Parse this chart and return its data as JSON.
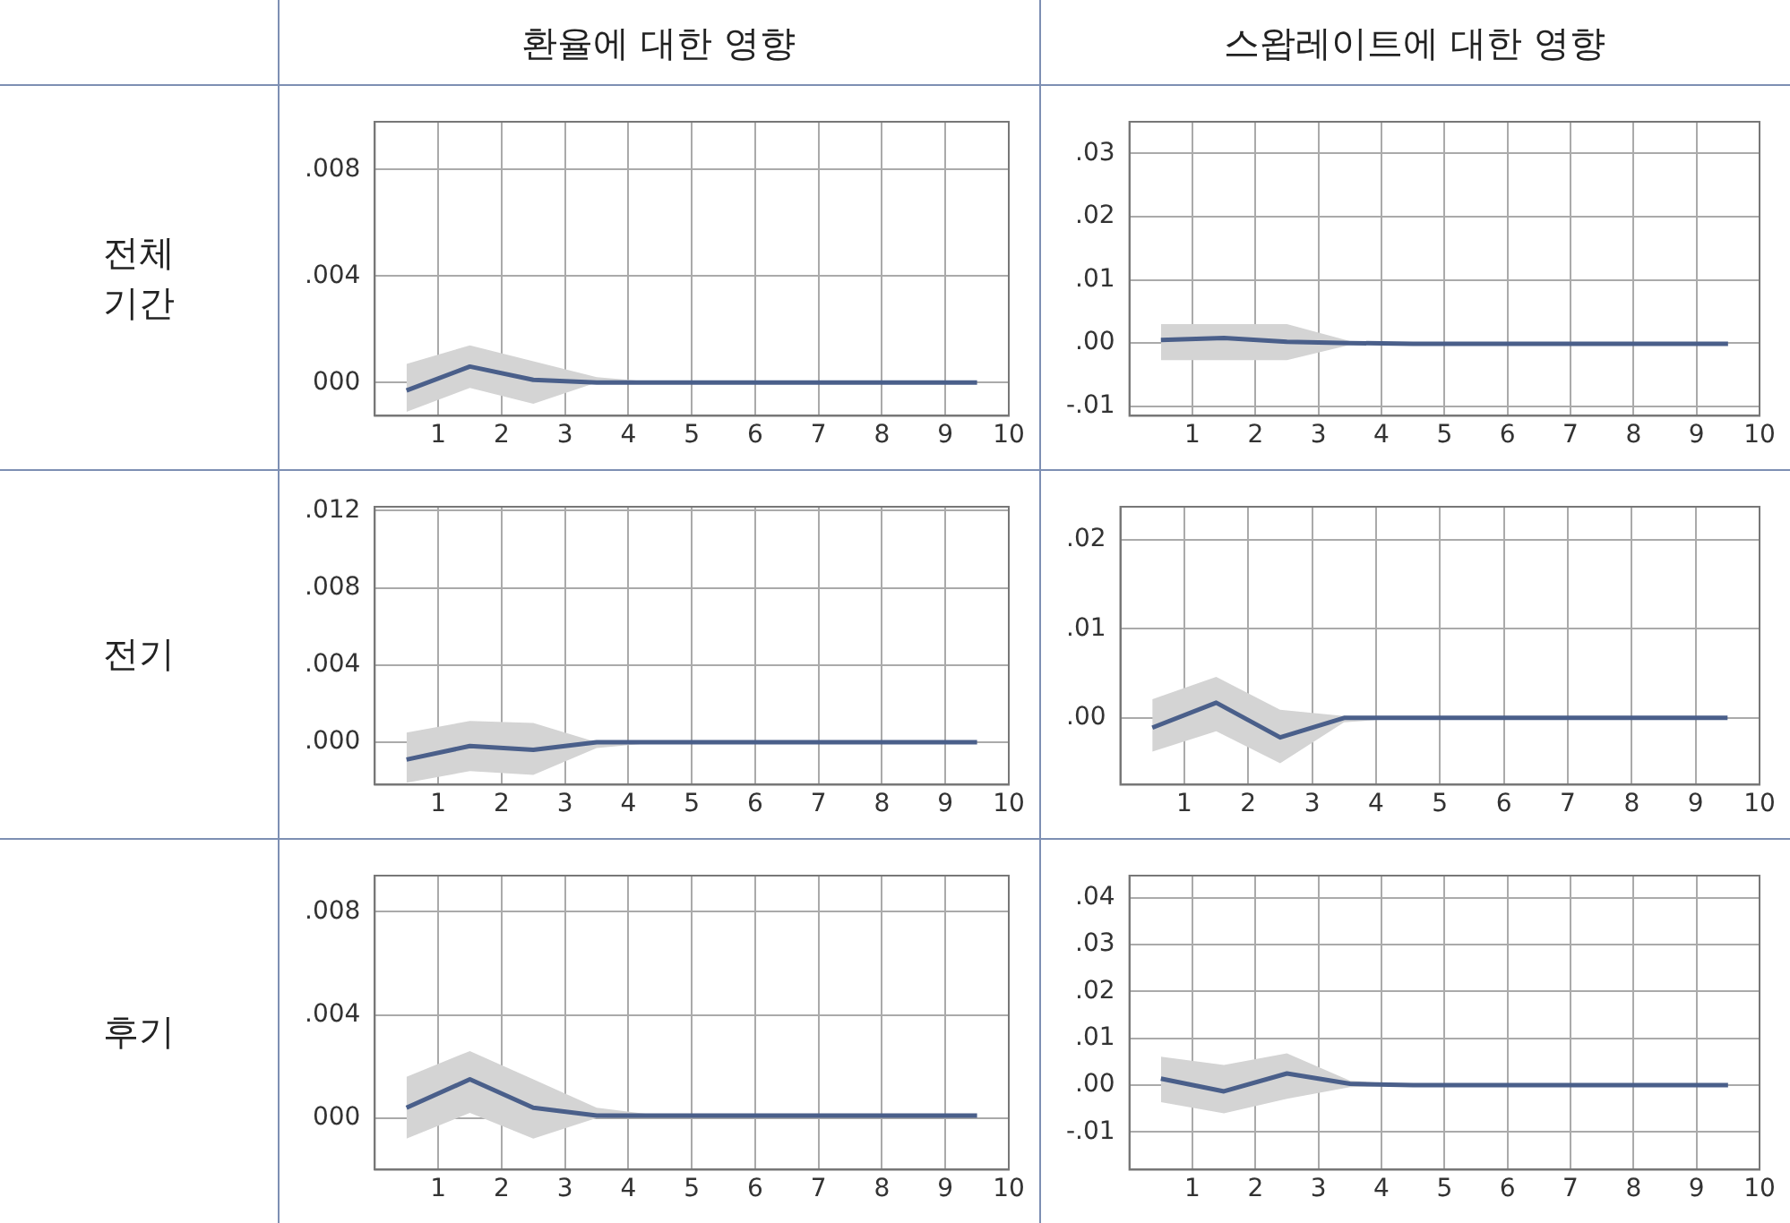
{
  "chart_data": [
    {
      "type": "other",
      "annotations": [
        "환율에 대한 영향",
        "스왑레이트에 대한 영향",
        "전체\n기간",
        "전기",
        "후기"
      ]
    },
    {
      "type": "line",
      "x": [
        0.5,
        1.5,
        2.5,
        3.5,
        4.5,
        5.5,
        6.5,
        7.5,
        8.5,
        9.5
      ],
      "xlim": [
        0,
        10
      ],
      "xticks": [
        1,
        2,
        3,
        4,
        5,
        6,
        7,
        8,
        9,
        10
      ],
      "ylim": [
        -0.00125,
        0.0098
      ],
      "yticks": [
        {
          "value": 0,
          "label": "000"
        },
        {
          "value": 0.004,
          "label": ".004"
        },
        {
          "value": 0.008,
          "label": ".008"
        }
      ],
      "grid": true,
      "series": [
        {
          "color": "#4a5f8a",
          "values": [
            -0.0003,
            0.0006,
            0.0001,
            0,
            0,
            0,
            0,
            0,
            0,
            0
          ],
          "lower": [
            -0.0011,
            -0.0002,
            -0.0008,
            0,
            0,
            0,
            0,
            0,
            0,
            0
          ],
          "upper": [
            0.0007,
            0.0014,
            0.0008,
            0.0002,
            0,
            0,
            0,
            0,
            0,
            0
          ]
        }
      ]
    },
    {
      "type": "line",
      "x": [
        0.5,
        1.5,
        2.5,
        3.5,
        4.5,
        5.5,
        6.5,
        7.5,
        8.5,
        9.5
      ],
      "xlim": [
        0,
        10
      ],
      "xticks": [
        1,
        2,
        3,
        4,
        5,
        6,
        7,
        8,
        9,
        10
      ],
      "ylim": [
        -0.0115,
        0.035
      ],
      "yticks": [
        {
          "value": -0.01,
          "label": "-.01"
        },
        {
          "value": 0,
          "label": ".00"
        },
        {
          "value": 0.01,
          "label": ".01"
        },
        {
          "value": 0.02,
          "label": ".02"
        },
        {
          "value": 0.03,
          "label": ".03"
        }
      ],
      "grid": true,
      "series": [
        {
          "color": "#4a5f8a",
          "values": [
            0.0005,
            0.0008,
            0.0002,
            0,
            -0.0001,
            -0.0001,
            -0.0001,
            -0.0001,
            -0.0001,
            -0.0001
          ],
          "lower": [
            -0.0027,
            -0.0027,
            -0.0027,
            -0.0003,
            -0.0001,
            -0.0001,
            -0.0001,
            -0.0001,
            -0.0001,
            -0.0001
          ],
          "upper": [
            0.003,
            0.003,
            0.003,
            0.0003,
            0,
            0,
            0,
            0,
            0,
            0
          ]
        }
      ]
    },
    {
      "type": "line",
      "x": [
        0.5,
        1.5,
        2.5,
        3.5,
        4.5,
        5.5,
        6.5,
        7.5,
        8.5,
        9.5
      ],
      "xlim": [
        0,
        10
      ],
      "xticks": [
        1,
        2,
        3,
        4,
        5,
        6,
        7,
        8,
        9,
        10
      ],
      "ylim": [
        -0.0022,
        0.0122
      ],
      "yticks": [
        {
          "value": 0,
          "label": ".000"
        },
        {
          "value": 0.004,
          "label": ".004"
        },
        {
          "value": 0.008,
          "label": ".008"
        },
        {
          "value": 0.012,
          "label": ".012"
        }
      ],
      "grid": true,
      "series": [
        {
          "color": "#4a5f8a",
          "values": [
            -0.0009,
            -0.0002,
            -0.0004,
            0,
            0,
            0,
            0,
            0,
            0,
            0
          ],
          "lower": [
            -0.0021,
            -0.0015,
            -0.0017,
            -0.0003,
            0,
            0,
            0,
            0,
            0,
            0
          ],
          "upper": [
            0.0005,
            0.0011,
            0.001,
            0,
            0,
            0,
            0,
            0,
            0,
            0
          ]
        }
      ]
    },
    {
      "type": "line",
      "x": [
        0.5,
        1.5,
        2.5,
        3.5,
        4.5,
        5.5,
        6.5,
        7.5,
        8.5,
        9.5
      ],
      "xlim": [
        0,
        10
      ],
      "xticks": [
        1,
        2,
        3,
        4,
        5,
        6,
        7,
        8,
        9,
        10
      ],
      "ylim": [
        -0.0075,
        0.0237
      ],
      "yticks": [
        {
          "value": 0,
          "label": ".00"
        },
        {
          "value": 0.01,
          "label": ".01"
        },
        {
          "value": 0.02,
          "label": ".02"
        }
      ],
      "grid": true,
      "series": [
        {
          "color": "#4a5f8a",
          "values": [
            -0.0011,
            0.0017,
            -0.0022,
            0,
            0,
            0,
            0,
            0,
            0,
            0
          ],
          "lower": [
            -0.0038,
            -0.0015,
            -0.0051,
            -0.0005,
            0,
            0,
            0,
            0,
            0,
            0
          ],
          "upper": [
            0.0021,
            0.0046,
            0.0009,
            0.0002,
            0,
            0,
            0,
            0,
            0,
            0
          ]
        }
      ]
    },
    {
      "type": "line",
      "x": [
        0.5,
        1.5,
        2.5,
        3.5,
        4.5,
        5.5,
        6.5,
        7.5,
        8.5,
        9.5
      ],
      "xlim": [
        0,
        10
      ],
      "xticks": [
        1,
        2,
        3,
        4,
        5,
        6,
        7,
        8,
        9,
        10
      ],
      "ylim": [
        -0.002,
        0.0094
      ],
      "yticks": [
        {
          "value": 0,
          "label": "000"
        },
        {
          "value": 0.004,
          "label": ".004"
        },
        {
          "value": 0.008,
          "label": ".008"
        }
      ],
      "grid": true,
      "series": [
        {
          "color": "#4a5f8a",
          "values": [
            0.0004,
            0.0015,
            0.0004,
            0.0001,
            0.0001,
            0.0001,
            0.0001,
            0.0001,
            0.0001,
            0.0001
          ],
          "lower": [
            -0.0008,
            0.0002,
            -0.0008,
            0,
            0.0001,
            0.0001,
            0.0001,
            0.0001,
            0.0001,
            0.0001
          ],
          "upper": [
            0.0016,
            0.0026,
            0.0015,
            0.0004,
            0.0001,
            0.0001,
            0.0001,
            0.0001,
            0.0001,
            0.0001
          ]
        }
      ]
    },
    {
      "type": "line",
      "x": [
        0.5,
        1.5,
        2.5,
        3.5,
        4.5,
        5.5,
        6.5,
        7.5,
        8.5,
        9.5
      ],
      "xlim": [
        0,
        10
      ],
      "xticks": [
        1,
        2,
        3,
        4,
        5,
        6,
        7,
        8,
        9,
        10
      ],
      "ylim": [
        -0.018,
        0.0447
      ],
      "yticks": [
        {
          "value": -0.01,
          "label": "-.01"
        },
        {
          "value": 0,
          "label": ".00"
        },
        {
          "value": 0.01,
          "label": ".01"
        },
        {
          "value": 0.02,
          "label": ".02"
        },
        {
          "value": 0.03,
          "label": ".03"
        },
        {
          "value": 0.04,
          "label": ".04"
        }
      ],
      "grid": true,
      "series": [
        {
          "color": "#4a5f8a",
          "values": [
            0.0014,
            -0.0013,
            0.0025,
            0.0003,
            0,
            0,
            0,
            0,
            0,
            0
          ],
          "lower": [
            -0.0036,
            -0.006,
            -0.0029,
            -0.0004,
            0,
            0,
            0,
            0,
            0,
            0
          ],
          "upper": [
            0.0061,
            0.0043,
            0.0068,
            0.001,
            0,
            0,
            0,
            0,
            0,
            0
          ]
        }
      ]
    }
  ]
}
